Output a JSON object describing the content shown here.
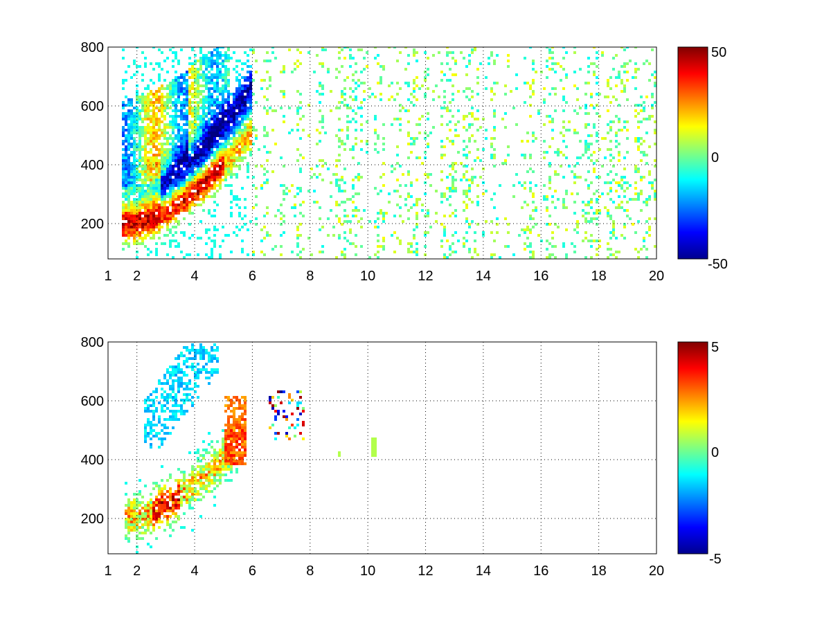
{
  "chart_data": [
    {
      "type": "heatmap",
      "x_ticks": [
        "1",
        "2",
        "4",
        "6",
        "8",
        "10",
        "12",
        "14",
        "16",
        "18",
        "20"
      ],
      "x_tick_values": [
        1,
        2,
        4,
        6,
        8,
        10,
        12,
        14,
        16,
        18,
        20
      ],
      "y_ticks": [
        "200",
        "400",
        "600",
        "800"
      ],
      "y_tick_values": [
        200,
        400,
        600,
        800
      ],
      "xlim": [
        1,
        20
      ],
      "ylim": [
        80,
        800
      ],
      "grid": true,
      "colormap": "jet",
      "colorbar": {
        "min": -50,
        "max": 50,
        "labels": [
          "50",
          "0",
          "-50"
        ]
      },
      "pattern": "Dense banded structure for x 1.5–6: positive (red) band rising from ~200 at x≈1.8 to ~400 at x≈4, negative (blue) band just above it from ~250 at x≈3 to ~500 at x≈5; scattered near-zero speckle over the remaining range to x=20."
    },
    {
      "type": "heatmap",
      "x_ticks": [
        "1",
        "2",
        "4",
        "6",
        "8",
        "10",
        "12",
        "14",
        "16",
        "18",
        "20"
      ],
      "x_tick_values": [
        1,
        2,
        4,
        6,
        8,
        10,
        12,
        14,
        16,
        18,
        20
      ],
      "y_ticks": [
        "200",
        "400",
        "600",
        "800"
      ],
      "y_tick_values": [
        200,
        400,
        600,
        800
      ],
      "xlim": [
        1,
        20
      ],
      "ylim": [
        80,
        800
      ],
      "grid": true,
      "colormap": "jet",
      "colorbar": {
        "min": -5,
        "max": 5,
        "labels": [
          "5",
          "0",
          "-5"
        ]
      },
      "pattern": "Masked field: values only for x 1.5–6 along the rising band (mostly 0 to +5), small isolated patches near x≈7, 9 and 10; remainder blank."
    }
  ]
}
